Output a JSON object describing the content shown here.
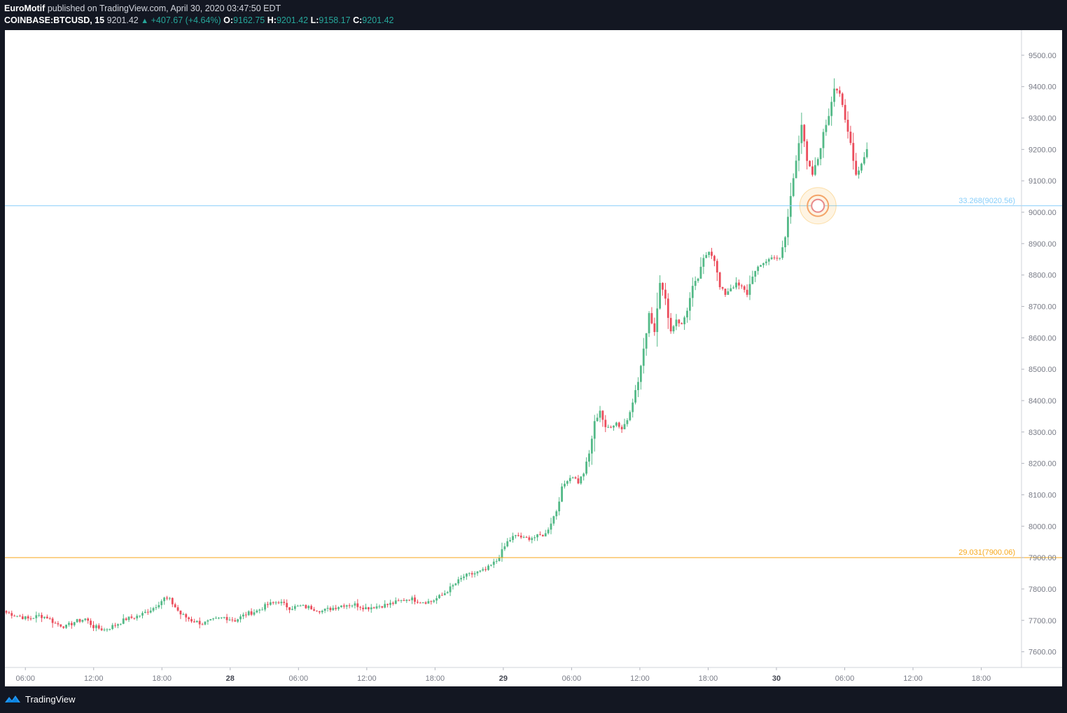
{
  "header": {
    "author": "EuroMotif",
    "published": "published on TradingView.com, April 30, 2020 03:47:50 EDT",
    "symbol": "COINBASE:BTCUSD, 15",
    "last": "9201.42",
    "change": "+407.67 (+4.64%)",
    "o_label": "O:",
    "o_value": "9162.75",
    "h_label": "H:",
    "h_value": "9201.42",
    "l_label": "L:",
    "l_value": "9158.17",
    "c_label": "C:",
    "c_value": "9201.42"
  },
  "footer": {
    "brand": "TradingView"
  },
  "colors": {
    "up": "#53b987",
    "down": "#eb4d5c",
    "fib_blue": "#87cefa",
    "fib_orange": "#f7a81b",
    "axis_text": "#787b86"
  },
  "chart_data": {
    "type": "candlestick",
    "symbol": "COINBASE:BTCUSD",
    "interval": "15",
    "ylim": [
      7550,
      9580
    ],
    "y_ticks": [
      "9500.00",
      "9400.00",
      "9300.00",
      "9200.00",
      "9100.00",
      "9000.00",
      "8900.00",
      "8800.00",
      "8700.00",
      "8600.00",
      "8500.00",
      "8400.00",
      "8300.00",
      "8200.00",
      "8100.00",
      "8000.00",
      "7900.00",
      "7800.00",
      "7700.00",
      "7600.00"
    ],
    "x_ticks": [
      "06:00",
      "12:00",
      "18:00",
      "28",
      "06:00",
      "12:00",
      "18:00",
      "29",
      "06:00",
      "12:00",
      "18:00",
      "30",
      "06:00",
      "12:00",
      "18:00"
    ],
    "hlines": [
      {
        "label": "33.268(9020.56)",
        "price": 9020.56,
        "color": "#87cefa"
      },
      {
        "label": "29.031(7900.06)",
        "price": 7900.06,
        "color": "#f7a81b"
      }
    ],
    "marker_price": 9020.56,
    "anchors": [
      [
        0,
        7725
      ],
      [
        4,
        7715
      ],
      [
        8,
        7705
      ],
      [
        12,
        7715
      ],
      [
        15,
        7710
      ],
      [
        18,
        7690
      ],
      [
        22,
        7680
      ],
      [
        25,
        7695
      ],
      [
        29,
        7705
      ],
      [
        32,
        7680
      ],
      [
        36,
        7670
      ],
      [
        40,
        7685
      ],
      [
        44,
        7705
      ],
      [
        47,
        7710
      ],
      [
        50,
        7720
      ],
      [
        54,
        7740
      ],
      [
        58,
        7770
      ],
      [
        60,
        7765
      ],
      [
        64,
        7720
      ],
      [
        68,
        7700
      ],
      [
        72,
        7690
      ],
      [
        76,
        7700
      ],
      [
        80,
        7710
      ],
      [
        84,
        7700
      ],
      [
        88,
        7720
      ],
      [
        92,
        7730
      ],
      [
        96,
        7750
      ],
      [
        100,
        7760
      ],
      [
        104,
        7740
      ],
      [
        108,
        7745
      ],
      [
        112,
        7740
      ],
      [
        116,
        7730
      ],
      [
        120,
        7740
      ],
      [
        124,
        7750
      ],
      [
        128,
        7750
      ],
      [
        132,
        7740
      ],
      [
        136,
        7745
      ],
      [
        140,
        7750
      ],
      [
        144,
        7760
      ],
      [
        148,
        7770
      ],
      [
        152,
        7760
      ],
      [
        156,
        7760
      ],
      [
        160,
        7780
      ],
      [
        164,
        7810
      ],
      [
        168,
        7840
      ],
      [
        172,
        7850
      ],
      [
        176,
        7860
      ],
      [
        180,
        7890
      ],
      [
        182,
        7920
      ],
      [
        184,
        7950
      ],
      [
        186,
        7965
      ],
      [
        188,
        7970
      ],
      [
        190,
        7960
      ],
      [
        194,
        7965
      ],
      [
        198,
        7975
      ],
      [
        202,
        8050
      ],
      [
        204,
        8120
      ],
      [
        206,
        8150
      ],
      [
        208,
        8160
      ],
      [
        210,
        8140
      ],
      [
        212,
        8170
      ],
      [
        214,
        8230
      ],
      [
        216,
        8330
      ],
      [
        218,
        8370
      ],
      [
        220,
        8310
      ],
      [
        222,
        8320
      ],
      [
        224,
        8330
      ],
      [
        226,
        8310
      ],
      [
        228,
        8340
      ],
      [
        230,
        8400
      ],
      [
        232,
        8460
      ],
      [
        234,
        8560
      ],
      [
        236,
        8680
      ],
      [
        238,
        8620
      ],
      [
        240,
        8780
      ],
      [
        242,
        8720
      ],
      [
        244,
        8620
      ],
      [
        246,
        8660
      ],
      [
        248,
        8640
      ],
      [
        250,
        8690
      ],
      [
        252,
        8760
      ],
      [
        254,
        8790
      ],
      [
        256,
        8850
      ],
      [
        258,
        8880
      ],
      [
        260,
        8850
      ],
      [
        262,
        8760
      ],
      [
        264,
        8740
      ],
      [
        266,
        8760
      ],
      [
        268,
        8770
      ],
      [
        270,
        8760
      ],
      [
        272,
        8740
      ],
      [
        274,
        8800
      ],
      [
        276,
        8820
      ],
      [
        278,
        8840
      ],
      [
        280,
        8850
      ],
      [
        282,
        8860
      ],
      [
        284,
        8850
      ],
      [
        286,
        8920
      ],
      [
        288,
        9050
      ],
      [
        290,
        9170
      ],
      [
        292,
        9280
      ],
      [
        294,
        9160
      ],
      [
        296,
        9120
      ],
      [
        298,
        9170
      ],
      [
        300,
        9250
      ],
      [
        302,
        9310
      ],
      [
        304,
        9400
      ],
      [
        306,
        9380
      ],
      [
        308,
        9290
      ],
      [
        310,
        9220
      ],
      [
        312,
        9120
      ],
      [
        314,
        9155
      ],
      [
        316,
        9201
      ]
    ],
    "x_range_bars": [
      0,
      378
    ]
  }
}
